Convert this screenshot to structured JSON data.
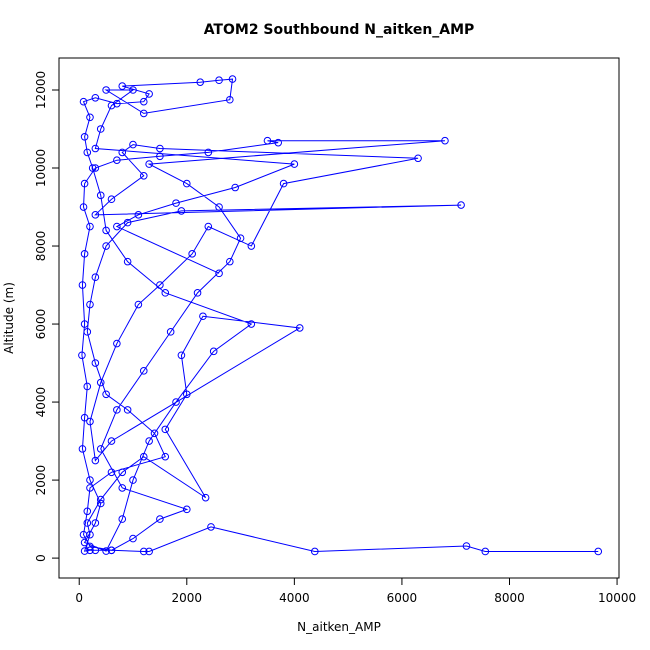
{
  "chart_data": {
    "type": "line",
    "markers": "circle",
    "title": "ATOM2 Southbound N_aitken_AMP",
    "xlabel": "N_aitken_AMP",
    "ylabel": "Altitude (m)",
    "color": "#0000ff",
    "xlim": [
      -376,
      10036
    ],
    "ylim": [
      -510,
      12820
    ],
    "xticks": [
      0,
      2000,
      4000,
      6000,
      8000,
      10000
    ],
    "yticks": [
      0,
      2000,
      4000,
      6000,
      8000,
      10000,
      12000
    ],
    "x": [
      9650,
      7550,
      7200,
      4380,
      2450,
      1300,
      1200,
      600,
      300,
      200,
      100,
      200,
      150,
      400,
      800,
      1200,
      2350,
      1600,
      2000,
      1900,
      2300,
      4100,
      600,
      300,
      200,
      400,
      700,
      1100,
      1500,
      2100,
      2400,
      3200,
      3800,
      6300,
      1500,
      1000,
      800,
      1200,
      600,
      300,
      7100,
      1900,
      900,
      500,
      300,
      200,
      150,
      300,
      500,
      900,
      1400,
      1600,
      600,
      200,
      150,
      80,
      200,
      600,
      1000,
      1500,
      2000,
      800,
      400,
      700,
      1200,
      1700,
      2200,
      2800,
      3000,
      2600,
      2000,
      1300,
      6800,
      3500,
      3700,
      2400,
      1500,
      700,
      300,
      100,
      80,
      200,
      100,
      60,
      100,
      50,
      150,
      100,
      60,
      200,
      400,
      300,
      100,
      500,
      800,
      1000,
      1300,
      1800,
      2500,
      3200,
      1600,
      900,
      500,
      400,
      250,
      150,
      100,
      200,
      80,
      300,
      700,
      1200,
      1300,
      800,
      2250,
      2600,
      2850,
      2800,
      1200,
      500,
      1000,
      600,
      400,
      300,
      4000,
      2900,
      1800,
      1100,
      700,
      2600
    ],
    "y": [
      170,
      170,
      310,
      170,
      800,
      170,
      170,
      200,
      200,
      200,
      180,
      600,
      900,
      1500,
      2200,
      2600,
      1550,
      3300,
      4200,
      5200,
      6200,
      5900,
      3000,
      2500,
      3500,
      4500,
      5500,
      6500,
      7000,
      7800,
      8500,
      8000,
      9600,
      10250,
      10500,
      10600,
      10400,
      9800,
      9200,
      8800,
      9050,
      8900,
      8600,
      8000,
      7200,
      6500,
      5800,
      5000,
      4200,
      3800,
      3200,
      2600,
      2200,
      1800,
      1200,
      600,
      300,
      200,
      500,
      1000,
      1250,
      1800,
      2800,
      3800,
      4800,
      5800,
      6800,
      7600,
      8200,
      9000,
      9600,
      10100,
      10700,
      10700,
      10650,
      10400,
      10300,
      10200,
      10000,
      9600,
      9000,
      8500,
      7800,
      7000,
      6000,
      5200,
      4400,
      3600,
      2800,
      2000,
      1400,
      900,
      400,
      180,
      1000,
      2000,
      3000,
      4000,
      5300,
      6000,
      6800,
      7600,
      8400,
      9300,
      10000,
      10400,
      10800,
      11300,
      11700,
      11800,
      11650,
      11700,
      11900,
      12100,
      12200,
      12250,
      12280,
      11750,
      11400,
      12000,
      12000,
      11600,
      11000,
      10500,
      10100,
      9500,
      9100,
      8800,
      8500,
      7300
    ]
  }
}
